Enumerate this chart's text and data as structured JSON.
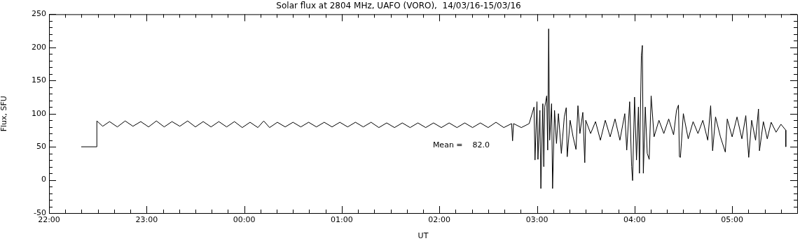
{
  "chart_data": {
    "type": "line",
    "title": "Solar flux at 2804 MHz, UAFO (VORO),  14/03/16-15/03/16",
    "xlabel": "UT",
    "ylabel": "Flux, SFU",
    "annotations": [
      "Mean =    82.0"
    ],
    "marker": "none",
    "line_style": "solid",
    "grid": false,
    "legend": false,
    "xlim": [
      "--03-14T22:00",
      "--03-15T05:40"
    ],
    "xticks": [
      {
        "value": "--03-14T22:00",
        "label": "22:00"
      },
      {
        "value": "--03-14T22:10",
        "label": null
      },
      {
        "value": "--03-14T22:20",
        "label": null
      },
      {
        "value": "--03-14T22:30",
        "label": null
      },
      {
        "value": "--03-14T22:40",
        "label": null
      },
      {
        "value": "--03-14T22:50",
        "label": null
      },
      {
        "value": "--03-14T23:00",
        "label": "23:00"
      },
      {
        "value": "--03-14T23:10",
        "label": null
      },
      {
        "value": "--03-14T23:20",
        "label": null
      },
      {
        "value": "--03-14T23:30",
        "label": null
      },
      {
        "value": "--03-14T23:40",
        "label": null
      },
      {
        "value": "--03-14T23:50",
        "label": null
      },
      {
        "value": "--03-15T00:00",
        "label": "00:00"
      },
      {
        "value": "--03-15T00:10",
        "label": null
      },
      {
        "value": "--03-15T00:20",
        "label": null
      },
      {
        "value": "--03-15T00:30",
        "label": null
      },
      {
        "value": "--03-15T00:40",
        "label": null
      },
      {
        "value": "--03-15T00:50",
        "label": null
      },
      {
        "value": "--03-15T01:00",
        "label": "01:00"
      },
      {
        "value": "--03-15T01:10",
        "label": null
      },
      {
        "value": "--03-15T01:20",
        "label": null
      },
      {
        "value": "--03-15T01:30",
        "label": null
      },
      {
        "value": "--03-15T01:40",
        "label": null
      },
      {
        "value": "--03-15T01:50",
        "label": null
      },
      {
        "value": "--03-15T02:00",
        "label": "02:00"
      },
      {
        "value": "--03-15T02:10",
        "label": null
      },
      {
        "value": "--03-15T02:20",
        "label": null
      },
      {
        "value": "--03-15T02:30",
        "label": null
      },
      {
        "value": "--03-15T02:40",
        "label": null
      },
      {
        "value": "--03-15T02:50",
        "label": null
      },
      {
        "value": "--03-15T03:00",
        "label": "03:00"
      },
      {
        "value": "--03-15T03:10",
        "label": null
      },
      {
        "value": "--03-15T03:20",
        "label": null
      },
      {
        "value": "--03-15T03:30",
        "label": null
      },
      {
        "value": "--03-15T03:40",
        "label": null
      },
      {
        "value": "--03-15T03:50",
        "label": null
      },
      {
        "value": "--03-15T04:00",
        "label": "04:00"
      },
      {
        "value": "--03-15T04:10",
        "label": null
      },
      {
        "value": "--03-15T04:20",
        "label": null
      },
      {
        "value": "--03-15T04:30",
        "label": null
      },
      {
        "value": "--03-15T04:40",
        "label": null
      },
      {
        "value": "--03-15T04:50",
        "label": null
      },
      {
        "value": "--03-15T05:00",
        "label": "05:00"
      },
      {
        "value": "--03-15T05:10",
        "label": null
      },
      {
        "value": "--03-15T05:20",
        "label": null
      },
      {
        "value": "--03-15T05:30",
        "label": null
      }
    ],
    "ylim": [
      -50,
      250
    ],
    "yticks": [
      -50,
      {
        "value": -40,
        "label": null
      },
      {
        "value": -30,
        "label": null
      },
      {
        "value": -20,
        "label": null
      },
      {
        "value": -10,
        "label": null
      },
      0,
      {
        "value": 10,
        "label": null
      },
      {
        "value": 20,
        "label": null
      },
      {
        "value": 30,
        "label": null
      },
      {
        "value": 40,
        "label": null
      },
      50,
      {
        "value": 60,
        "label": null
      },
      {
        "value": 70,
        "label": null
      },
      {
        "value": 80,
        "label": null
      },
      {
        "value": 90,
        "label": null
      },
      100,
      {
        "value": 110,
        "label": null
      },
      {
        "value": 120,
        "label": null
      },
      {
        "value": 130,
        "label": null
      },
      {
        "value": 140,
        "label": null
      },
      150,
      {
        "value": 160,
        "label": null
      },
      {
        "value": 170,
        "label": null
      },
      {
        "value": 180,
        "label": null
      },
      {
        "value": 190,
        "label": null
      },
      200,
      {
        "value": 210,
        "label": null
      },
      {
        "value": 220,
        "label": null
      },
      {
        "value": 230,
        "label": null
      },
      {
        "value": 240,
        "label": null
      },
      250
    ],
    "series": [
      {
        "color": "#000000",
        "x": [
          "--03-14T22:19:48",
          "--03-14T22:29:24",
          "--03-14T22:29:24",
          "--03-14T22:33:00",
          "--03-14T22:37:12",
          "--03-14T22:42:00",
          "--03-14T22:46:48",
          "--03-14T22:51:36",
          "--03-14T22:56:24",
          "--03-14T23:01:12",
          "--03-14T23:06:00",
          "--03-14T23:10:48",
          "--03-14T23:15:36",
          "--03-14T23:20:24",
          "--03-14T23:25:12",
          "--03-14T23:30:00",
          "--03-14T23:34:48",
          "--03-14T23:39:36",
          "--03-14T23:44:24",
          "--03-14T23:49:12",
          "--03-14T23:54:00",
          "--03-14T23:58:48",
          "--03-15T00:03:36",
          "--03-15T00:08:24",
          "--03-15T00:12:00",
          "--03-15T00:15:36",
          "--03-15T00:20:24",
          "--03-15T00:25:12",
          "--03-15T00:30:00",
          "--03-15T00:34:48",
          "--03-15T00:39:36",
          "--03-15T00:44:24",
          "--03-15T00:49:12",
          "--03-15T00:54:00",
          "--03-15T00:58:48",
          "--03-15T01:03:36",
          "--03-15T01:08:24",
          "--03-15T01:13:12",
          "--03-15T01:18:00",
          "--03-15T01:22:48",
          "--03-15T01:27:36",
          "--03-15T01:32:24",
          "--03-15T01:37:12",
          "--03-15T01:42:00",
          "--03-15T01:46:48",
          "--03-15T01:51:36",
          "--03-15T01:56:24",
          "--03-15T02:01:12",
          "--03-15T02:06:00",
          "--03-15T02:10:48",
          "--03-15T02:15:36",
          "--03-15T02:20:24",
          "--03-15T02:25:12",
          "--03-15T02:30:00",
          "--03-15T02:34:48",
          "--03-15T02:39:36",
          "--03-15T02:44:24",
          "--03-15T02:45:00",
          "--03-15T02:45:36",
          "--03-15T02:50:24",
          "--03-15T02:55:12",
          "--03-15T02:58:12",
          "--03-15T02:58:48",
          "--03-15T03:00:00",
          "--03-15T03:00:36",
          "--03-15T03:01:48",
          "--03-15T03:02:24",
          "--03-15T03:03:36",
          "--03-15T03:04:12",
          "--03-15T03:04:48",
          "--03-15T03:06:00",
          "--03-15T03:06:36",
          "--03-15T03:07:12",
          "--03-15T03:07:48",
          "--03-15T03:09:00",
          "--03-15T03:09:36",
          "--03-15T03:10:48",
          "--03-15T03:12:00",
          "--03-15T03:13:12",
          "--03-15T03:15:00",
          "--03-15T03:16:48",
          "--03-15T03:18:00",
          "--03-15T03:18:36",
          "--03-15T03:20:24",
          "--03-15T03:22:12",
          "--03-15T03:24:00",
          "--03-15T03:25:12",
          "--03-15T03:26:24",
          "--03-15T03:28:12",
          "--03-15T03:29:24",
          "--03-15T03:30:00",
          "--03-15T03:33:00",
          "--03-15T03:36:00",
          "--03-15T03:39:00",
          "--03-15T03:42:00",
          "--03-15T03:45:00",
          "--03-15T03:48:00",
          "--03-15T03:51:00",
          "--03-15T03:54:00",
          "--03-15T03:55:12",
          "--03-15T03:57:00",
          "--03-15T03:58:12",
          "--03-15T03:58:48",
          "--03-15T04:00:00",
          "--03-15T04:01:12",
          "--03-15T04:02:24",
          "--03-15T04:03:00",
          "--03-15T04:04:12",
          "--03-15T04:04:48",
          "--03-15T04:05:24",
          "--03-15T04:06:36",
          "--03-15T04:07:48",
          "--03-15T04:09:00",
          "--03-15T04:10:12",
          "--03-15T04:12:00",
          "--03-15T04:15:00",
          "--03-15T04:18:00",
          "--03-15T04:21:00",
          "--03-15T04:24:00",
          "--03-15T04:25:48",
          "--03-15T04:27:00",
          "--03-15T04:27:36",
          "--03-15T04:28:12",
          "--03-15T04:30:00",
          "--03-15T04:33:00",
          "--03-15T04:36:00",
          "--03-15T04:39:00",
          "--03-15T04:42:00",
          "--03-15T04:45:00",
          "--03-15T04:46:48",
          "--03-15T04:48:00",
          "--03-15T04:49:48",
          "--03-15T04:52:48",
          "--03-15T04:55:48",
          "--03-15T04:57:00",
          "--03-15T05:00:00",
          "--03-15T05:03:00",
          "--03-15T05:06:00",
          "--03-15T05:08:24",
          "--03-15T05:10:12",
          "--03-15T05:12:00",
          "--03-15T05:14:24",
          "--03-15T05:16:12",
          "--03-15T05:16:48",
          "--03-15T05:19:12",
          "--03-15T05:21:36",
          "--03-15T05:24:00",
          "--03-15T05:27:00",
          "--03-15T05:30:00",
          "--03-15T05:33:00",
          "--03-15T05:33:00"
        ],
        "values": [
          50,
          50,
          89,
          81,
          88,
          80,
          89,
          81,
          88,
          80,
          89,
          80,
          88,
          81,
          89,
          80,
          88,
          80,
          88,
          80,
          88,
          79,
          87,
          79,
          89,
          79,
          87,
          80,
          87,
          80,
          87,
          80,
          87,
          80,
          87,
          80,
          87,
          80,
          87,
          79,
          86,
          79,
          86,
          79,
          86,
          79,
          86,
          79,
          86,
          79,
          86,
          79,
          86,
          79,
          87,
          79,
          85,
          59,
          85,
          79,
          85,
          110,
          30,
          118,
          31,
          105,
          -13,
          115,
          20,
          110,
          127,
          45,
          228,
          60,
          115,
          -13,
          105,
          55,
          100,
          40,
          95,
          109,
          35,
          90,
          65,
          46,
          112,
          70,
          102,
          26,
          90,
          70,
          88,
          60,
          90,
          65,
          92,
          60,
          100,
          45,
          118,
          20,
          -1,
          125,
          30,
          110,
          10,
          188,
          203,
          10,
          110,
          40,
          31,
          127,
          65,
          90,
          70,
          92,
          68,
          105,
          113,
          35,
          34,
          100,
          62,
          88,
          70,
          90,
          60,
          112,
          44,
          95,
          65,
          42,
          92,
          65,
          95,
          62,
          97,
          34,
          90,
          60,
          107,
          44,
          88,
          62,
          87,
          72,
          84,
          75,
          50
        ]
      }
    ]
  }
}
